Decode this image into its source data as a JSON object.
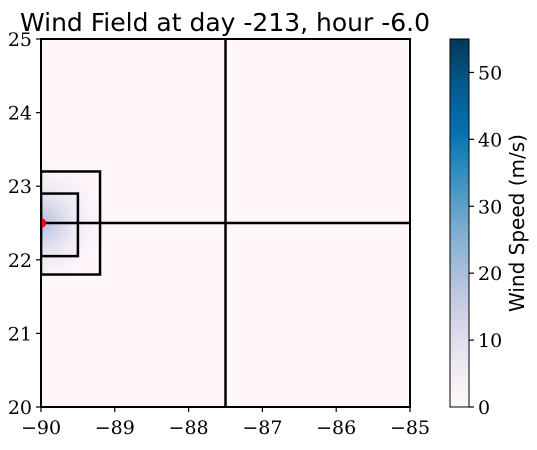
{
  "chart_data": {
    "type": "heatmap",
    "title": "Wind Field at day -213, hour -6.0",
    "xlabel": "",
    "ylabel": "",
    "xlim": [
      -90,
      -85
    ],
    "ylim": [
      20,
      25
    ],
    "x_ticks": [
      -90,
      -89,
      -88,
      -87,
      -86,
      -85
    ],
    "y_ticks": [
      20,
      21,
      22,
      23,
      24,
      25
    ],
    "x_tick_labels": [
      "−90",
      "−89",
      "−88",
      "−87",
      "−86",
      "−85"
    ],
    "y_tick_labels": [
      "20",
      "21",
      "22",
      "23",
      "24",
      "25"
    ],
    "storm_center": {
      "lon": -90,
      "lat": 22.5,
      "color": "#ff0000"
    },
    "peak_wind_speed_estimate": 20,
    "field_falloff_degrees_estimate": 0.9,
    "grid_lines": [
      {
        "type": "vertical",
        "lon": -87.5,
        "lat_range": [
          20,
          25
        ]
      },
      {
        "type": "horizontal",
        "lat": 22.5,
        "lon_range": [
          -90,
          -85
        ]
      }
    ],
    "boxes": [
      {
        "lon_min": -90,
        "lon_max": -89.2,
        "lat_min": 21.8,
        "lat_max": 23.2
      },
      {
        "lon_min": -90,
        "lon_max": -89.5,
        "lat_min": 22.05,
        "lat_max": 22.9
      }
    ],
    "colorbar": {
      "label": "Wind Speed (m/s)",
      "range": [
        0,
        55
      ],
      "ticks": [
        0,
        10,
        20,
        30,
        40,
        50
      ],
      "tick_labels": [
        "0",
        "10",
        "20",
        "30",
        "40",
        "50"
      ],
      "colormap": "PuBu",
      "colors": [
        "#fff7fb",
        "#ece7f2",
        "#d0d1e6",
        "#a6bddb",
        "#74a9cf",
        "#3690c0",
        "#0570b0",
        "#045a8d",
        "#023858"
      ]
    }
  }
}
